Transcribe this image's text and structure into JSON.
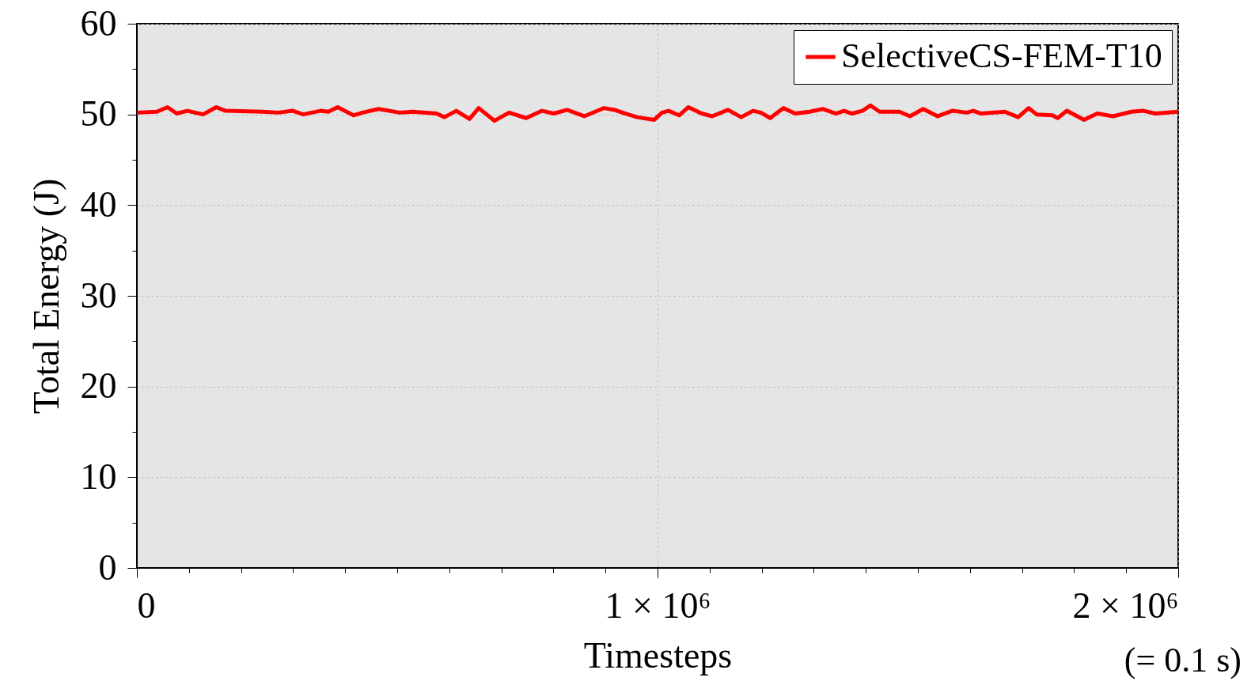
{
  "chart_data": {
    "type": "line",
    "xlabel": "Timesteps",
    "ylabel": "Total Energy (J)",
    "annotations": [
      "(= 0.1 s)"
    ],
    "x": [
      0,
      38500,
      58800,
      76500,
      96800,
      127200,
      152500,
      170200,
      241200,
      271600,
      299400,
      319600,
      352600,
      367800,
      385600,
      416000,
      433600,
      464000,
      504600,
      529900,
      575500,
      590700,
      613500,
      638800,
      656500,
      686900,
      714800,
      747700,
      778100,
      800900,
      826200,
      859200,
      897200,
      917400,
      932600,
      960500,
      993400,
      1008600,
      1021300,
      1041500,
      1059300,
      1084600,
      1104900,
      1135300,
      1160600,
      1183400,
      1198600,
      1216300,
      1241600,
      1264400,
      1292300,
      1317600,
      1343000,
      1358200,
      1373400,
      1393600,
      1408800,
      1426600,
      1464600,
      1484800,
      1510200,
      1538000,
      1565800,
      1593800,
      1606400,
      1621600,
      1667200,
      1692600,
      1712800,
      1728000,
      1758400,
      1768500,
      1786200,
      1819100,
      1844500,
      1874900,
      1910300,
      1933100,
      1955900,
      2000000
    ],
    "series": [
      {
        "name": "SelectiveCS-FEM-T10",
        "color": "#ff0000",
        "values": [
          50.2,
          50.3,
          50.8,
          50.1,
          50.4,
          50.0,
          50.8,
          50.4,
          50.3,
          50.2,
          50.4,
          50.0,
          50.4,
          50.3,
          50.8,
          49.9,
          50.2,
          50.6,
          50.2,
          50.3,
          50.1,
          49.7,
          50.4,
          49.5,
          50.7,
          49.3,
          50.2,
          49.6,
          50.4,
          50.1,
          50.5,
          49.8,
          50.7,
          50.5,
          50.2,
          49.7,
          49.4,
          50.2,
          50.4,
          49.9,
          50.8,
          50.1,
          49.8,
          50.5,
          49.7,
          50.4,
          50.2,
          49.6,
          50.7,
          50.1,
          50.3,
          50.6,
          50.1,
          50.4,
          50.1,
          50.4,
          51.0,
          50.3,
          50.3,
          49.8,
          50.6,
          49.8,
          50.4,
          50.2,
          50.4,
          50.1,
          50.3,
          49.7,
          50.7,
          50.0,
          49.9,
          49.6,
          50.4,
          49.4,
          50.1,
          49.8,
          50.3,
          50.4,
          50.1,
          50.3
        ]
      }
    ],
    "xlim": [
      0,
      2000000
    ],
    "xticks": [
      0,
      {
        "value": 100000,
        "label": null
      },
      {
        "value": 200000,
        "label": null
      },
      {
        "value": 300000,
        "label": null
      },
      {
        "value": 400000,
        "label": null
      },
      {
        "value": 500000,
        "label": null
      },
      {
        "value": 600000,
        "label": null
      },
      {
        "value": 700000,
        "label": null
      },
      {
        "value": 800000,
        "label": null
      },
      {
        "value": 900000,
        "label": null
      },
      {
        "value": 1000000,
        "label": "1 × 10⁶"
      },
      {
        "value": 1100000,
        "label": null
      },
      {
        "value": 1200000,
        "label": null
      },
      {
        "value": 1300000,
        "label": null
      },
      {
        "value": 1400000,
        "label": null
      },
      {
        "value": 1500000,
        "label": null
      },
      {
        "value": 1600000,
        "label": null
      },
      {
        "value": 1700000,
        "label": null
      },
      {
        "value": 1800000,
        "label": null
      },
      {
        "value": 1900000,
        "label": null
      },
      {
        "value": 2000000,
        "label": "2 × 10⁶"
      }
    ],
    "ylim": [
      0,
      60
    ],
    "yticks": [
      0,
      {
        "value": 5,
        "label": null
      },
      10,
      {
        "value": 15,
        "label": null
      },
      20,
      {
        "value": 25,
        "label": null
      },
      30,
      {
        "value": 35,
        "label": null
      },
      40,
      {
        "value": 45,
        "label": null
      },
      50,
      {
        "value": 55,
        "label": null
      },
      60
    ],
    "grid": true,
    "legend": "top right",
    "line_style": "solid",
    "marker": "none"
  }
}
